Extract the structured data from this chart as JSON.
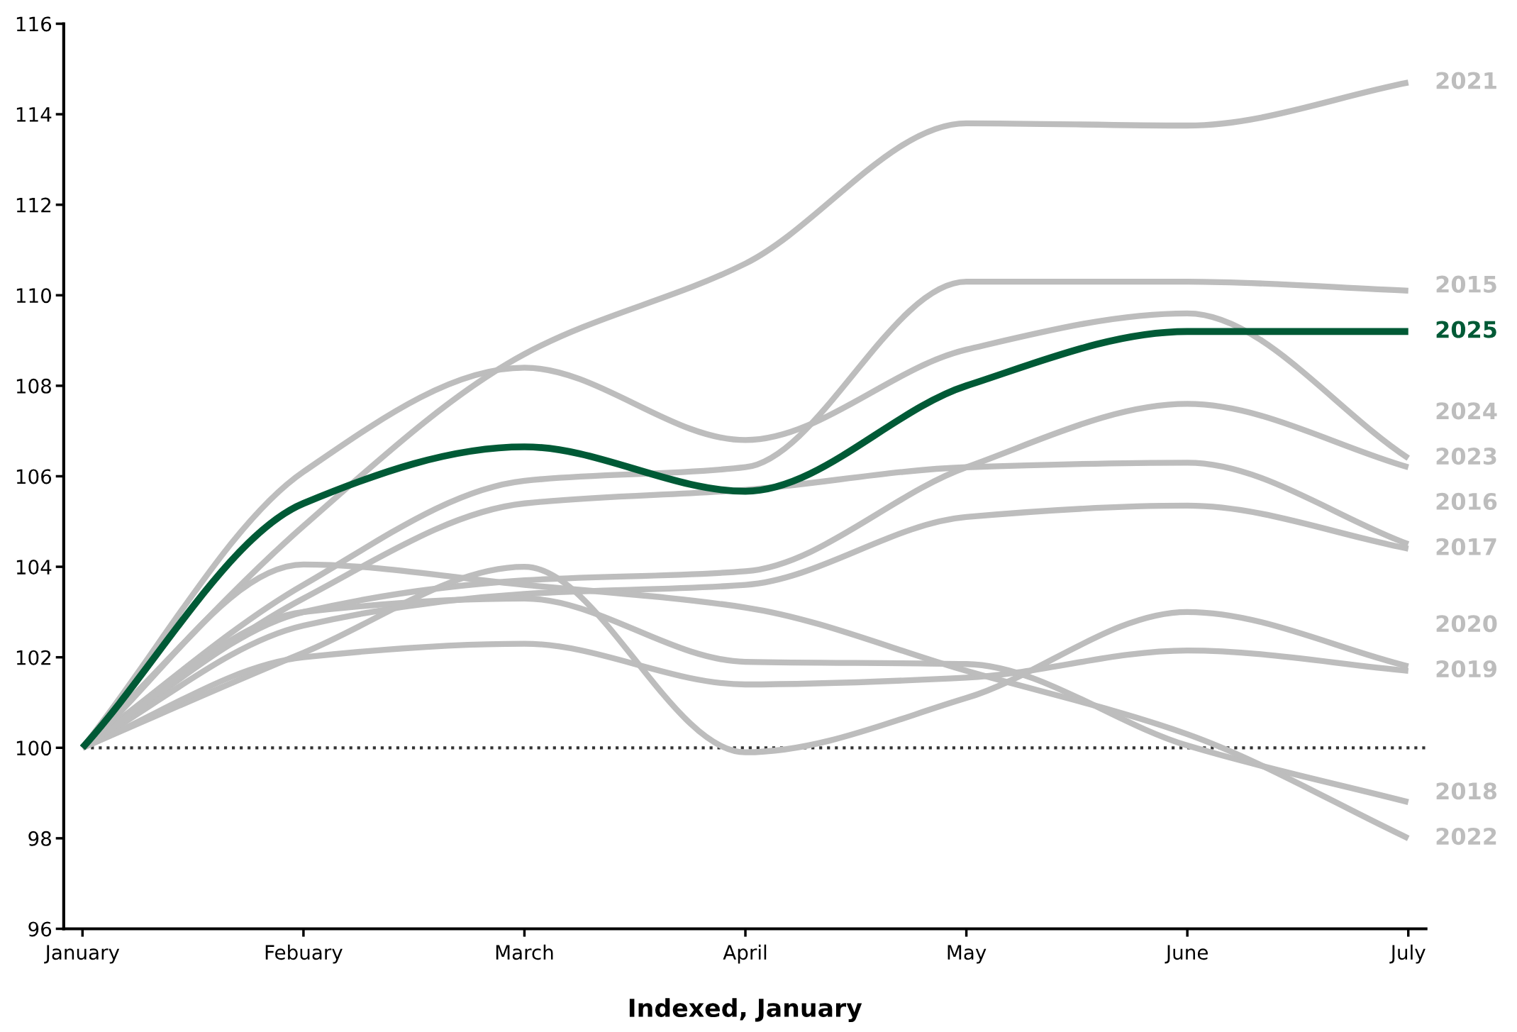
{
  "chart_data": {
    "type": "line",
    "xlabel": "Indexed, January",
    "categories": [
      "January",
      "Febuary",
      "March",
      "April",
      "May",
      "June",
      "July"
    ],
    "ylim": [
      96,
      116
    ],
    "yticks": [
      96,
      98,
      100,
      102,
      104,
      106,
      108,
      110,
      112,
      114,
      116
    ],
    "grid": false,
    "legend": false,
    "marker": "none",
    "line_style": "solid",
    "ref_lines": [
      {
        "axis": "y",
        "value": 100,
        "color": "#333333",
        "line_style": "dotted"
      }
    ],
    "series": [
      {
        "name": "2021",
        "color": "#bdbdbd",
        "values": [
          100,
          104.9,
          108.7,
          110.7,
          113.8,
          113.75,
          114.7
        ]
      },
      {
        "name": "2015",
        "color": "#bdbdbd",
        "values": [
          100,
          103.6,
          105.9,
          106.2,
          110.3,
          110.3,
          110.1
        ]
      },
      {
        "name": "2024",
        "color": "#bdbdbd",
        "values": [
          100,
          106.1,
          108.4,
          106.8,
          108.8,
          109.6,
          106.4
        ]
      },
      {
        "name": "2023",
        "color": "#bdbdbd",
        "values": [
          100,
          103.0,
          103.7,
          103.9,
          106.2,
          107.6,
          106.2
        ]
      },
      {
        "name": "2016",
        "color": "#bdbdbd",
        "values": [
          100,
          103.3,
          105.4,
          105.7,
          106.2,
          106.3,
          104.5
        ]
      },
      {
        "name": "2017",
        "color": "#bdbdbd",
        "values": [
          100,
          102.7,
          103.4,
          103.6,
          105.1,
          105.35,
          104.4
        ]
      },
      {
        "name": "2020",
        "color": "#bdbdbd",
        "values": [
          100,
          102.1,
          104.0,
          99.9,
          101.1,
          103.0,
          101.8
        ]
      },
      {
        "name": "2019",
        "color": "#bdbdbd",
        "values": [
          100,
          102.0,
          102.3,
          101.4,
          101.55,
          102.15,
          101.7
        ]
      },
      {
        "name": "2018",
        "color": "#bdbdbd",
        "values": [
          100,
          103.0,
          103.3,
          101.9,
          101.85,
          100.05,
          98.8
        ]
      },
      {
        "name": "2022",
        "color": "#bdbdbd",
        "values": [
          100,
          104.05,
          103.6,
          103.1,
          101.7,
          100.3,
          98.0
        ]
      },
      {
        "name": "2025",
        "color": "#005a36",
        "values": [
          100,
          105.4,
          106.65,
          105.67,
          108.0,
          109.2,
          109.2
        ]
      }
    ]
  }
}
